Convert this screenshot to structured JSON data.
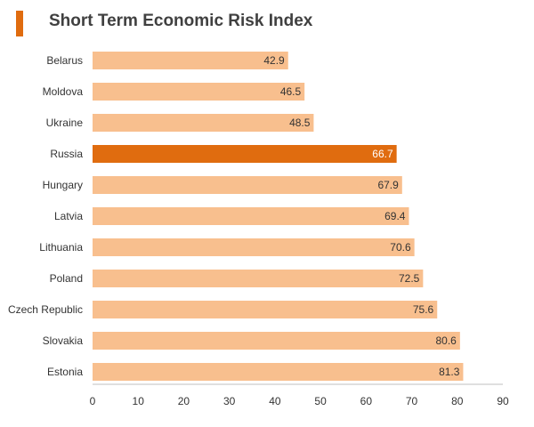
{
  "chart_data": {
    "type": "bar",
    "orientation": "horizontal",
    "title": "Short Term Economic Risk Index",
    "xlabel": "",
    "ylabel": "",
    "categories": [
      "Belarus",
      "Moldova",
      "Ukraine",
      "Russia",
      "Hungary",
      "Latvia",
      "Lithuania",
      "Poland",
      "Czech Republic",
      "Slovakia",
      "Estonia"
    ],
    "values": [
      42.9,
      46.5,
      48.5,
      66.7,
      67.9,
      69.4,
      70.6,
      72.5,
      75.6,
      80.6,
      81.3
    ],
    "value_labels": [
      "42.9",
      "46.5",
      "48.5",
      "66.7",
      "67.9",
      "69.4",
      "70.6",
      "72.5",
      "75.6",
      "80.6",
      "81.3"
    ],
    "highlighted_category": "Russia",
    "xlim": [
      0,
      90
    ],
    "xticks": [
      0,
      10,
      20,
      30,
      40,
      50,
      60,
      70,
      80,
      90
    ],
    "xtick_labels": [
      "0",
      "10",
      "20",
      "30",
      "40",
      "50",
      "60",
      "70",
      "80",
      "90"
    ],
    "grid": false,
    "colors": {
      "bar": "#f8bf8e",
      "highlight": "#e06c0f",
      "accent": "#e06c0f",
      "axis": "#bfbfbf"
    }
  }
}
